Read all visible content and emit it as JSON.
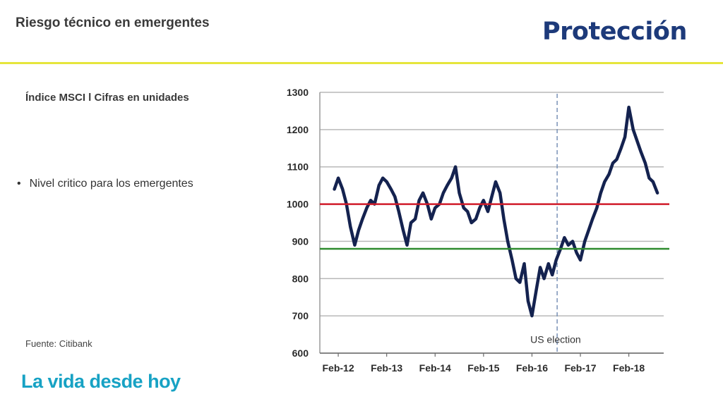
{
  "header": {
    "title": "Riesgo técnico en emergentes",
    "logo_text": "Protección"
  },
  "main": {
    "subtitle": "Índice  MSCI l Cifras en unidades",
    "bullet": "Nivel critico para los emergentes",
    "bullet_marker": "•",
    "source": "Fuente: Citibank"
  },
  "footer": {
    "tagline": "La vida desde hoy"
  },
  "colors": {
    "brand": "#1d3a7a",
    "accent_rule": "#e6e63c",
    "tagline": "#17a2c4",
    "series": "#14224f",
    "red_line": "#d01c2a",
    "green_line": "#2e8b2e"
  },
  "chart_data": {
    "type": "line",
    "x_tick_labels": [
      "Feb-12",
      "Feb-13",
      "Feb-14",
      "Feb-15",
      "Feb-16",
      "Feb-17",
      "Feb-18"
    ],
    "y_ticks": [
      600,
      700,
      800,
      900,
      1000,
      1100,
      1200,
      1300
    ],
    "ylim": [
      600,
      1300
    ],
    "grid": true,
    "reference_lines": [
      {
        "value": 1000,
        "color": "#d01c2a"
      },
      {
        "value": 880,
        "color": "#2e8b2e"
      }
    ],
    "event_line": {
      "x": 2016.6,
      "label": "US election"
    },
    "series": [
      {
        "x": [
          2012.0,
          2012.08,
          2012.17,
          2012.25,
          2012.33,
          2012.42,
          2012.5,
          2012.58,
          2012.67,
          2012.75,
          2012.83,
          2012.92,
          2013.0,
          2013.08,
          2013.17,
          2013.25,
          2013.33,
          2013.42,
          2013.5,
          2013.58,
          2013.67,
          2013.75,
          2013.83,
          2013.92,
          2014.0,
          2014.08,
          2014.17,
          2014.25,
          2014.33,
          2014.42,
          2014.5,
          2014.58,
          2014.67,
          2014.75,
          2014.83,
          2014.92,
          2015.0,
          2015.08,
          2015.17,
          2015.25,
          2015.33,
          2015.42,
          2015.5,
          2015.58,
          2015.67,
          2015.75,
          2015.83,
          2015.92,
          2016.0,
          2016.08,
          2016.17,
          2016.25,
          2016.33,
          2016.42,
          2016.5,
          2016.58,
          2016.67,
          2016.75,
          2016.83,
          2016.92,
          2017.0,
          2017.08,
          2017.17,
          2017.25,
          2017.33,
          2017.42,
          2017.5,
          2017.58,
          2017.67,
          2017.75,
          2017.83,
          2017.92,
          2018.0,
          2018.08,
          2018.17,
          2018.25,
          2018.33,
          2018.42,
          2018.5,
          2018.58,
          2018.67
        ],
        "values": [
          1040,
          1070,
          1040,
          1000,
          940,
          890,
          930,
          960,
          990,
          1010,
          1000,
          1050,
          1070,
          1060,
          1040,
          1020,
          980,
          930,
          890,
          950,
          960,
          1010,
          1030,
          1000,
          960,
          990,
          1000,
          1030,
          1050,
          1070,
          1100,
          1030,
          990,
          980,
          950,
          960,
          990,
          1010,
          980,
          1020,
          1060,
          1030,
          960,
          900,
          850,
          800,
          790,
          840,
          740,
          700,
          770,
          830,
          800,
          840,
          810,
          850,
          880,
          910,
          890,
          900,
          870,
          850,
          900,
          930,
          960,
          990,
          1030,
          1060,
          1080,
          1110,
          1120,
          1150,
          1180,
          1260,
          1200,
          1170,
          1140,
          1110,
          1070,
          1060,
          1030
        ]
      }
    ]
  }
}
